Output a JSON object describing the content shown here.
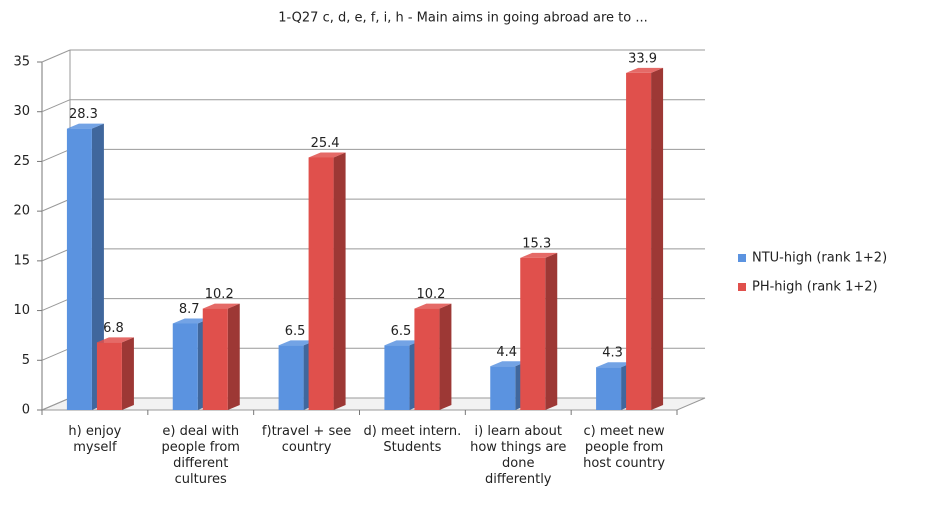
{
  "chart_data": {
    "type": "bar3d",
    "title": "1-Q27 c, d, e, f, i, h - Main aims in going abroad are to ...",
    "categories": [
      "h) enjoy myself",
      "e) deal with people from different cultures",
      "f)travel + see country",
      "d) meet intern. Students",
      "i) learn about how things are done differently",
      "c) meet new people from host country"
    ],
    "series": [
      {
        "name": "NTU-high (rank 1+2)",
        "color": "#5b93e0",
        "values": [
          28.3,
          8.7,
          6.5,
          6.5,
          4.4,
          4.3
        ]
      },
      {
        "name": "PH-high (rank 1+2)",
        "color": "#e0504c",
        "values": [
          6.8,
          10.2,
          25.4,
          10.2,
          15.3,
          33.9
        ]
      }
    ],
    "ylim": [
      0,
      35
    ],
    "yticks": [
      0,
      5,
      10,
      15,
      20,
      25,
      30,
      35
    ],
    "grid": true,
    "legend": "right"
  }
}
